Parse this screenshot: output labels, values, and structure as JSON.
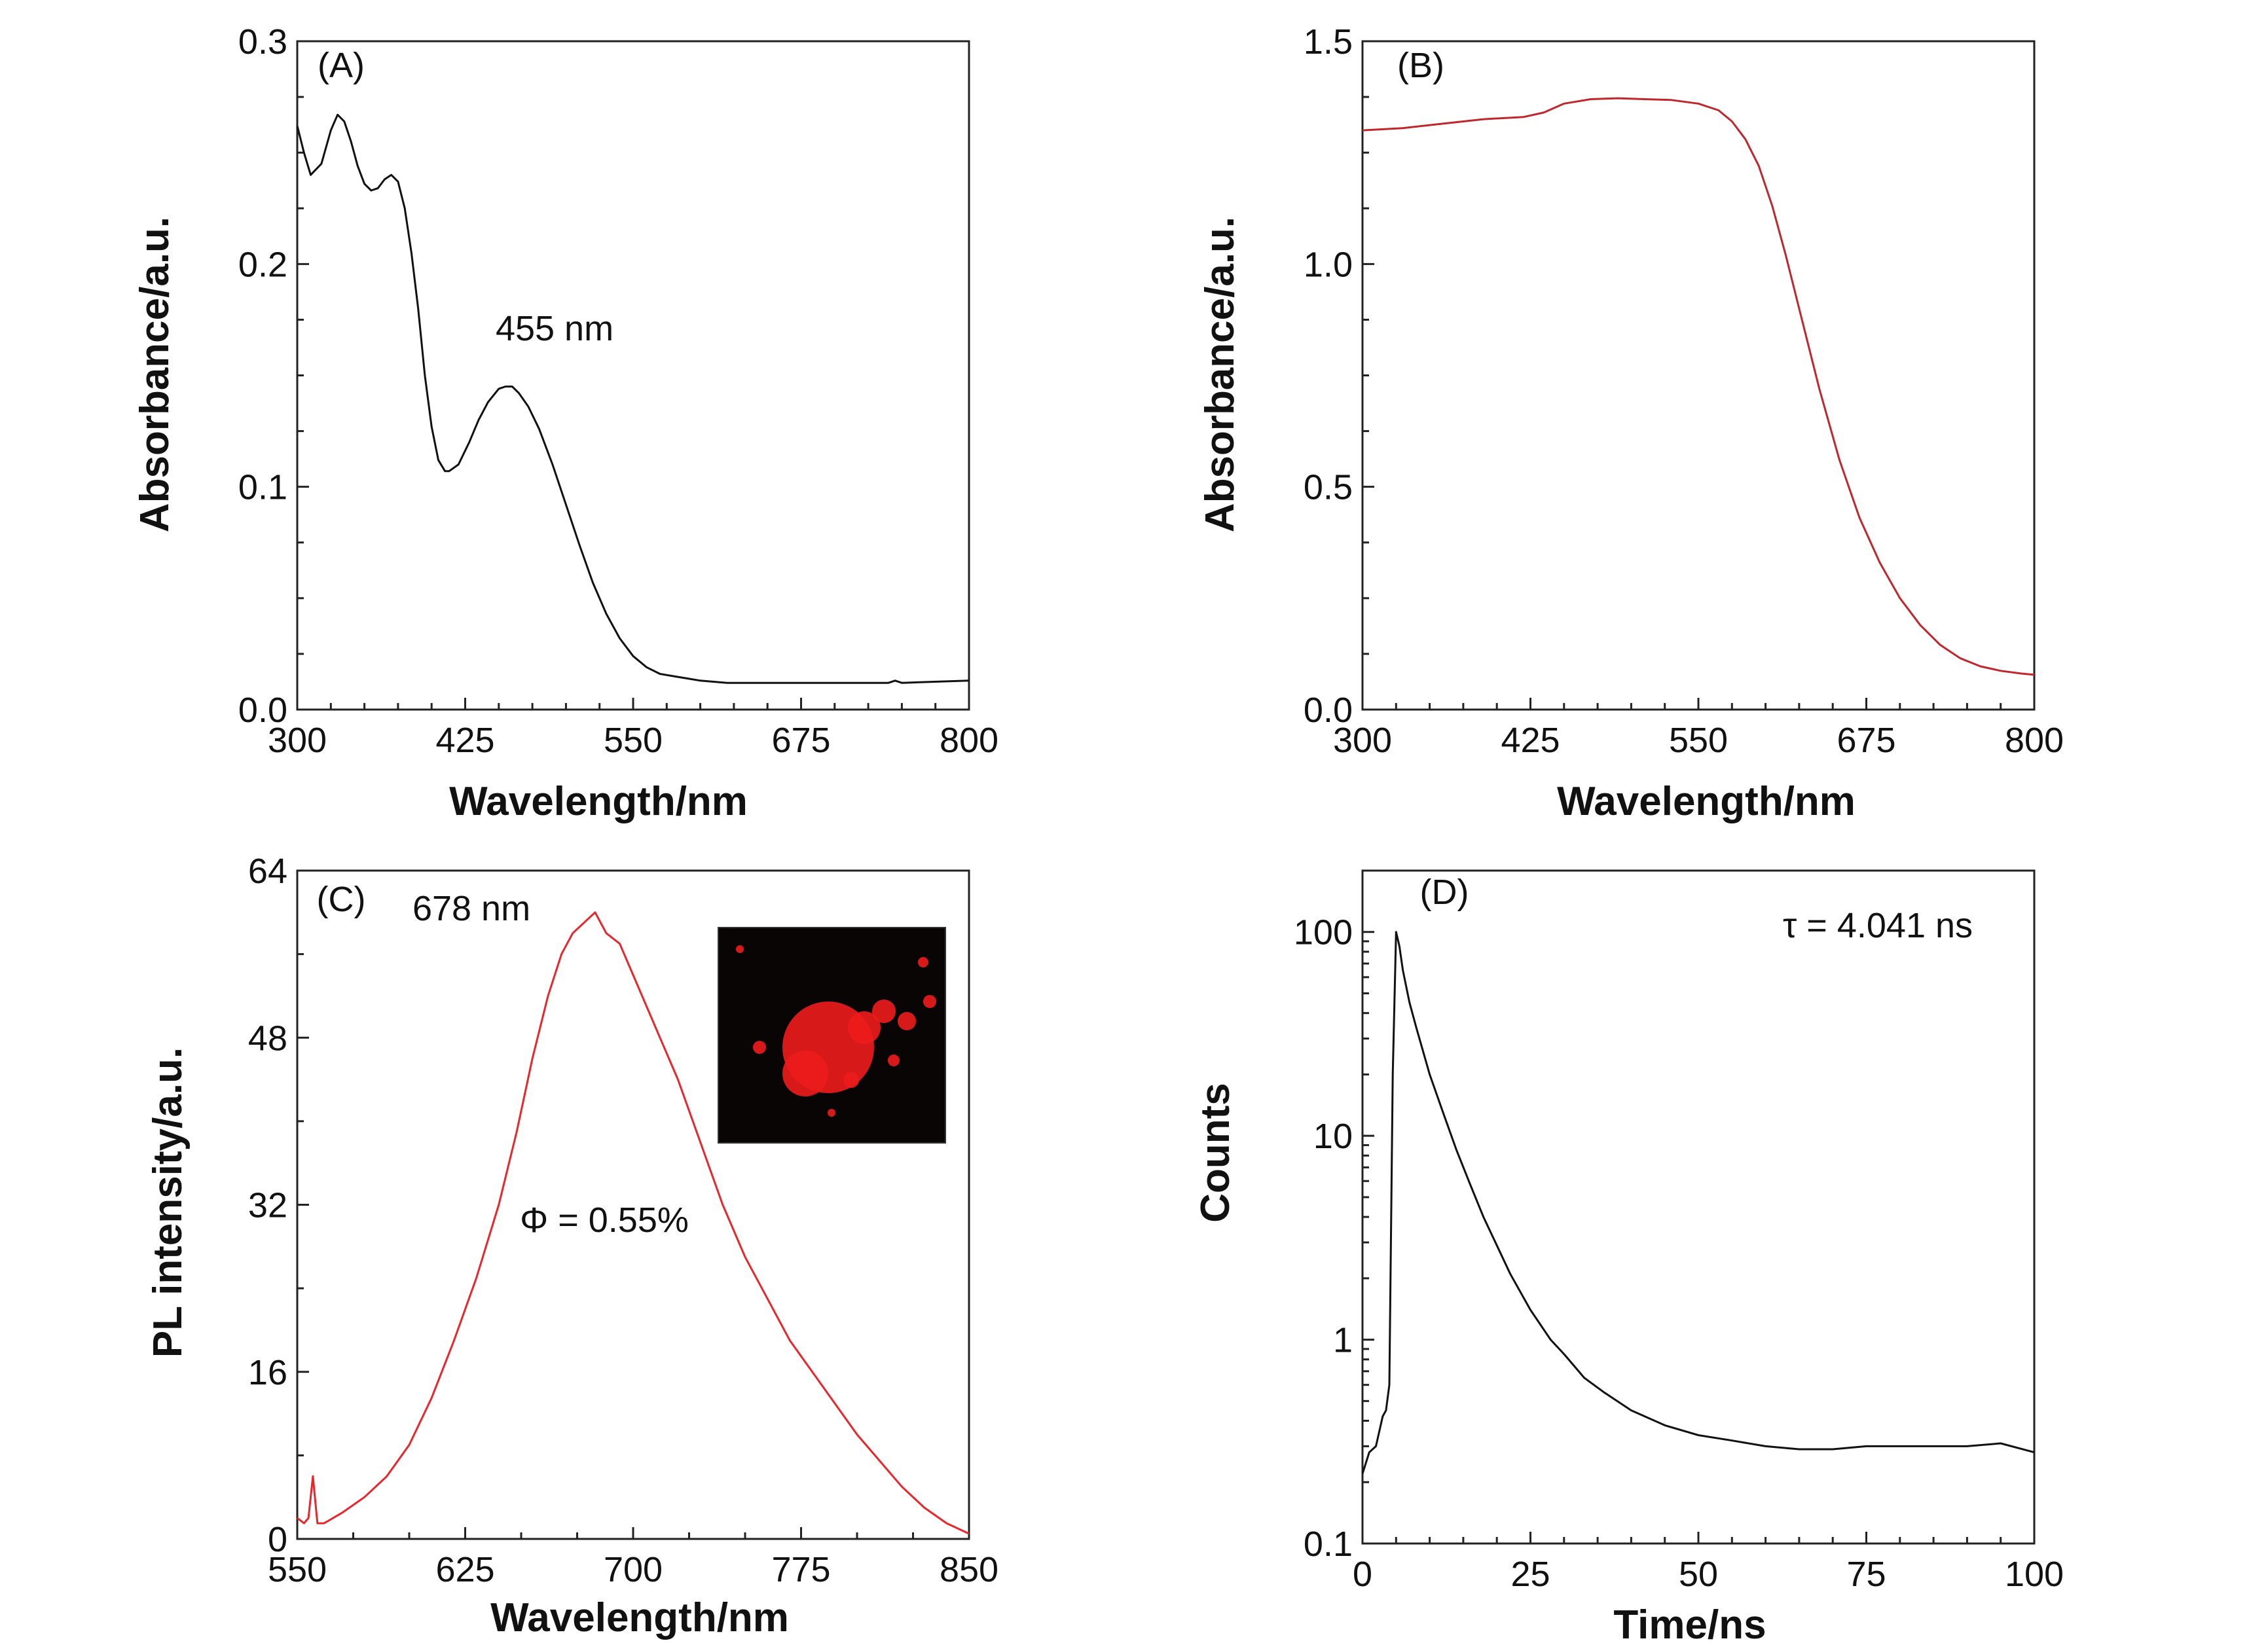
{
  "chart_data": [
    {
      "type": "line",
      "panel_label": "(A)",
      "xlabel": "Wavelength/nm",
      "ylabel": "Absorbance/a.u.",
      "xlim": [
        300,
        800
      ],
      "ylim": [
        0,
        0.3
      ],
      "xticks": [
        300,
        425,
        550,
        675,
        800
      ],
      "yticks": [
        "0.0",
        "0.1",
        "0.2",
        "0.3"
      ],
      "annotations": [
        "455 nm"
      ],
      "color": "#111111",
      "series": [
        {
          "x": [
            300,
            305,
            310,
            318,
            325,
            330,
            335,
            340,
            345,
            350,
            355,
            360,
            365,
            370,
            375,
            380,
            385,
            390,
            395,
            400,
            405,
            410,
            413,
            420,
            428,
            435,
            442,
            450,
            455,
            460,
            465,
            472,
            480,
            490,
            500,
            510,
            520,
            530,
            540,
            550,
            560,
            570,
            580,
            590,
            600,
            620,
            640,
            700,
            740,
            745,
            750,
            800
          ],
          "y": [
            0.262,
            0.25,
            0.24,
            0.245,
            0.26,
            0.267,
            0.264,
            0.255,
            0.244,
            0.236,
            0.233,
            0.234,
            0.238,
            0.24,
            0.237,
            0.225,
            0.205,
            0.18,
            0.15,
            0.127,
            0.112,
            0.107,
            0.107,
            0.11,
            0.12,
            0.13,
            0.138,
            0.144,
            0.145,
            0.145,
            0.142,
            0.136,
            0.126,
            0.11,
            0.092,
            0.074,
            0.057,
            0.043,
            0.032,
            0.024,
            0.019,
            0.016,
            0.015,
            0.014,
            0.013,
            0.012,
            0.012,
            0.012,
            0.012,
            0.013,
            0.012,
            0.013
          ]
        }
      ]
    },
    {
      "type": "line",
      "panel_label": "(B)",
      "xlabel": "Wavelength/nm",
      "ylabel": "Absorbance/a.u.",
      "xlim": [
        300,
        800
      ],
      "ylim": [
        0,
        1.5
      ],
      "xticks": [
        300,
        425,
        550,
        675,
        800
      ],
      "yticks": [
        "0.0",
        "0.5",
        "1.0",
        "1.5"
      ],
      "color": "#c0272d",
      "series": [
        {
          "x": [
            300,
            330,
            360,
            390,
            420,
            435,
            450,
            470,
            490,
            510,
            530,
            550,
            565,
            575,
            585,
            595,
            605,
            615,
            625,
            640,
            655,
            670,
            685,
            700,
            715,
            730,
            745,
            760,
            775,
            790,
            800
          ],
          "y": [
            1.3,
            1.305,
            1.315,
            1.325,
            1.33,
            1.34,
            1.36,
            1.37,
            1.372,
            1.37,
            1.368,
            1.36,
            1.345,
            1.32,
            1.28,
            1.22,
            1.13,
            1.02,
            0.9,
            0.72,
            0.56,
            0.43,
            0.33,
            0.25,
            0.19,
            0.145,
            0.115,
            0.097,
            0.087,
            0.081,
            0.078
          ]
        }
      ]
    },
    {
      "type": "line",
      "panel_label": "(C)",
      "xlabel": "Wavelength/nm",
      "ylabel": "PL intensity/a.u.",
      "xlim": [
        550,
        850
      ],
      "ylim": [
        0,
        64
      ],
      "xticks": [
        550,
        625,
        700,
        775,
        850
      ],
      "yticks": [
        "0",
        "16",
        "32",
        "48",
        "64"
      ],
      "annotations": [
        "678 nm",
        "Φ = 0.55%"
      ],
      "inset": "photo-red-emission",
      "color": "#e8262b",
      "series": [
        {
          "x": [
            550,
            553,
            555,
            557,
            559,
            562,
            570,
            580,
            590,
            600,
            610,
            620,
            630,
            640,
            648,
            655,
            662,
            668,
            673,
            678,
            683,
            688,
            694,
            700,
            706,
            712,
            720,
            730,
            740,
            750,
            760,
            770,
            780,
            790,
            800,
            810,
            820,
            830,
            840,
            850
          ],
          "y": [
            2,
            1.5,
            2,
            6,
            1.5,
            1.5,
            2.5,
            4,
            6,
            9,
            13.5,
            19,
            25,
            32,
            39,
            46,
            52,
            56,
            58,
            59,
            60,
            58,
            57,
            54,
            51,
            48,
            44,
            38,
            32,
            27,
            23,
            19,
            16,
            13,
            10,
            7.5,
            5,
            3,
            1.5,
            0.5
          ]
        }
      ]
    },
    {
      "type": "line",
      "panel_label": "(D)",
      "xlabel": "Time/ns",
      "ylabel": "Counts",
      "xlim": [
        0,
        100
      ],
      "ylim": [
        0.1,
        200
      ],
      "yscale": "log",
      "xticks": [
        0,
        25,
        50,
        75,
        100
      ],
      "yticks": [
        "0.1",
        "1",
        "10",
        "100"
      ],
      "annotations": [
        "τ = 4.041 ns"
      ],
      "color": "#111111",
      "series": [
        {
          "x": [
            0,
            1,
            2,
            3,
            3.5,
            4,
            4.5,
            5,
            5.5,
            6,
            7,
            8,
            10,
            12,
            14,
            16,
            18,
            20,
            22,
            25,
            28,
            30,
            33,
            36,
            40,
            45,
            50,
            55,
            60,
            65,
            70,
            75,
            80,
            85,
            90,
            95,
            100
          ],
          "y": [
            0.22,
            0.28,
            0.3,
            0.42,
            0.45,
            0.6,
            20,
            100,
            85,
            65,
            45,
            34,
            20,
            13,
            8.5,
            5.8,
            4,
            2.9,
            2.1,
            1.4,
            1.0,
            0.85,
            0.65,
            0.55,
            0.45,
            0.38,
            0.34,
            0.32,
            0.3,
            0.29,
            0.29,
            0.3,
            0.3,
            0.3,
            0.3,
            0.31,
            0.28
          ]
        }
      ]
    }
  ]
}
